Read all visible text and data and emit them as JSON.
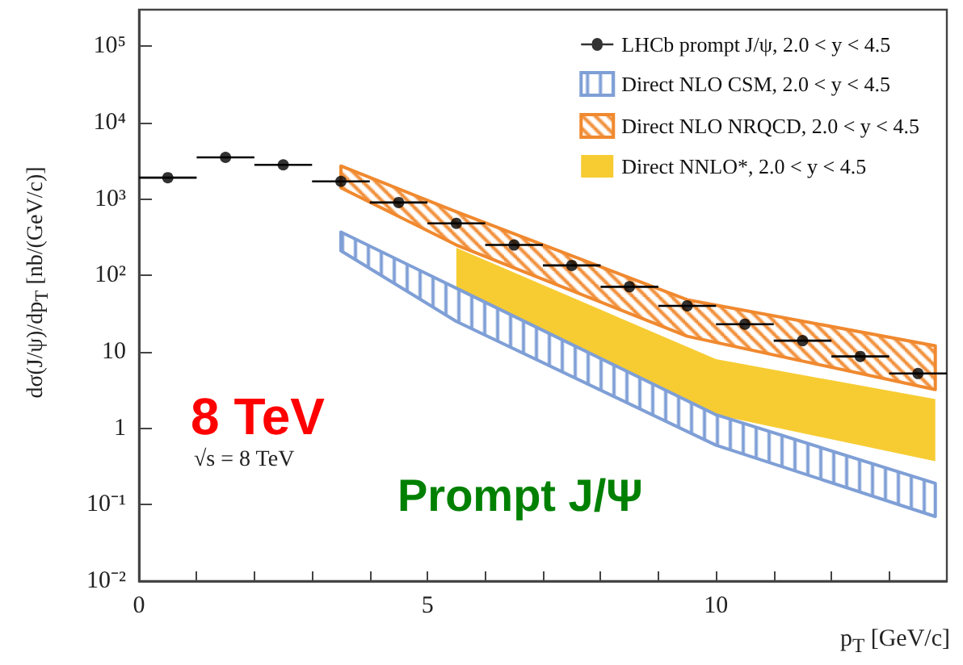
{
  "chart_data": {
    "type": "scatter",
    "xlabel": "p$_{T}$ [GeV/c]",
    "ylabel": "dσ(J/ψ)/dp$_{T}$ [nb/(GeV/c)]",
    "annotations": [
      "8 TeV",
      "√s = 8 TeV",
      "Prompt J/Ψ"
    ],
    "log": "y",
    "grid": false,
    "legend": "top right",
    "marker": "circle",
    "xlim": [
      0,
      14
    ],
    "xticks": [
      0,
      {
        "value": 1,
        "label": null
      },
      {
        "value": 2,
        "label": null
      },
      {
        "value": 3,
        "label": null
      },
      {
        "value": 4,
        "label": null
      },
      5,
      {
        "value": 6,
        "label": null
      },
      {
        "value": 7,
        "label": null
      },
      {
        "value": 8,
        "label": null
      },
      {
        "value": 9,
        "label": null
      },
      10,
      {
        "value": 11,
        "label": null
      },
      {
        "value": 12,
        "label": null
      },
      {
        "value": 13,
        "label": null
      }
    ],
    "ylim": [
      0.01,
      300000
    ],
    "yticks": [
      {
        "value": 0.01,
        "label": "10⁻²"
      },
      {
        "value": 0.1,
        "label": "10⁻¹"
      },
      1,
      10,
      {
        "value": 100,
        "label": "10²"
      },
      {
        "value": 1000,
        "label": "10³"
      },
      {
        "value": 10000,
        "label": "10⁴"
      },
      {
        "value": 100000,
        "label": "10⁵"
      }
    ],
    "series": [
      {
        "name": "LHCb prompt J/ψ, 2.0 < y < 4.5",
        "type": "scatter",
        "color": "#000000",
        "x": [
          0.5,
          1.5,
          2.5,
          3.5,
          4.5,
          5.5,
          6.5,
          7.5,
          8.5,
          9.5,
          10.5,
          11.5,
          12.5,
          13.5
        ],
        "values": [
          1900,
          3500,
          2800,
          1700,
          900,
          480,
          250,
          135,
          71,
          40,
          23,
          14,
          8.7,
          5.2
        ],
        "xerrors": [
          0.5,
          0.5,
          0.5,
          0.5,
          0.5,
          0.5,
          0.5,
          0.5,
          0.5,
          0.5,
          0.5,
          0.5,
          0.5,
          0.5
        ]
      },
      {
        "name": "Direct NLO CSM, 2.0 < y < 4.5",
        "type": "area",
        "color": "#7f9fd6",
        "x": [
          3.5,
          5.5,
          10,
          13.8
        ],
        "values": [
          null,
          null,
          null,
          null
        ],
        "lower": [
          210,
          25,
          0.6,
          0.07
        ],
        "upper": [
          370,
          68,
          1.5,
          0.19
        ]
      },
      {
        "name": "Direct NLO NRQCD, 2.0 < y < 4.5",
        "type": "area",
        "color": "#f0892f",
        "x": [
          3.5,
          5.5,
          9.5,
          13.8
        ],
        "values": [
          null,
          null,
          null,
          null
        ],
        "lower": [
          1400,
          250,
          16,
          3.2
        ],
        "upper": [
          2700,
          680,
          48,
          12
        ]
      },
      {
        "name": "Direct NNLO*, 2.0 < y < 4.5",
        "type": "area",
        "color": "#f7cc33",
        "x": [
          5.5,
          10,
          13.8
        ],
        "values": [
          null,
          null,
          null
        ],
        "lower": [
          42,
          1.5,
          0.37
        ],
        "upper": [
          230,
          8,
          2.4
        ]
      }
    ]
  }
}
